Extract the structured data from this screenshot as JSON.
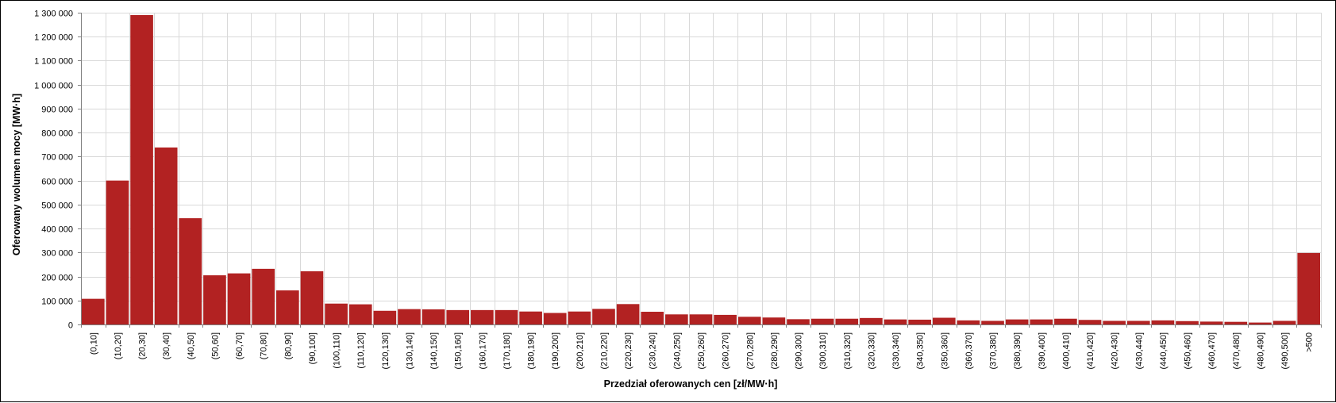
{
  "chart_data": {
    "type": "bar",
    "xlabel": "Przedział oferowanych cen [zł/MW·h]",
    "ylabel": "Oferowany wolumen mocy [MW·h]",
    "ylim": [
      0,
      1300000
    ],
    "yticks": [
      {
        "value": 0,
        "label": "0"
      },
      {
        "value": 100000,
        "label": "100 000"
      },
      {
        "value": 200000,
        "label": "200 000"
      },
      {
        "value": 300000,
        "label": "300 000"
      },
      {
        "value": 400000,
        "label": "400 000"
      },
      {
        "value": 500000,
        "label": "500 000"
      },
      {
        "value": 600000,
        "label": "600 000"
      },
      {
        "value": 700000,
        "label": "700 000"
      },
      {
        "value": 800000,
        "label": "800 000"
      },
      {
        "value": 900000,
        "label": "900 000"
      },
      {
        "value": 1000000,
        "label": "1 000 000"
      },
      {
        "value": 1100000,
        "label": "1 100 000"
      },
      {
        "value": 1200000,
        "label": "1 200 000"
      },
      {
        "value": 1300000,
        "label": "1 300 000"
      }
    ],
    "grid": true,
    "colors": {
      "bar": "#b22222",
      "grid": "#d9d9d9",
      "axis": "#808080"
    },
    "categories": [
      "(0,10]",
      "(10,20]",
      "(20,30]",
      "(30,40]",
      "(40,50]",
      "(50,60]",
      "(60,70]",
      "(70,80]",
      "(80,90]",
      "(90,100]",
      "(100,110]",
      "(110,120]",
      "(120,130]",
      "(130,140]",
      "(140,150]",
      "(150,160]",
      "(160,170]",
      "(170,180]",
      "(180,190]",
      "(190,200]",
      "(200,210]",
      "(210,220]",
      "(220,230]",
      "(230,240]",
      "(240,250]",
      "(250,260]",
      "(260,270]",
      "(270,280]",
      "(280,290]",
      "(290,300]",
      "(300,310]",
      "(310,320]",
      "(320,330]",
      "(330,340]",
      "(340,350]",
      "(350,360]",
      "(360,370]",
      "(370,380]",
      "(380,390]",
      "(390,400]",
      "(400,410]",
      "(410,420]",
      "(420,430]",
      "(430,440]",
      "(440,450]",
      "(450,460]",
      "(460,470]",
      "(470,480]",
      "(480,490]",
      "(490,500]",
      ">500"
    ],
    "values": [
      107000,
      600000,
      1290000,
      738000,
      443000,
      205000,
      213000,
      232000,
      142000,
      222000,
      87000,
      84000,
      57000,
      64000,
      63000,
      60000,
      60000,
      60000,
      54000,
      48000,
      54000,
      65000,
      85000,
      53000,
      42000,
      42000,
      40000,
      32000,
      29000,
      22000,
      24000,
      24000,
      27000,
      21000,
      20000,
      28000,
      17000,
      15000,
      21000,
      21000,
      24000,
      19000,
      15000,
      15000,
      17000,
      14000,
      12000,
      11000,
      8000,
      15000,
      298000
    ]
  }
}
